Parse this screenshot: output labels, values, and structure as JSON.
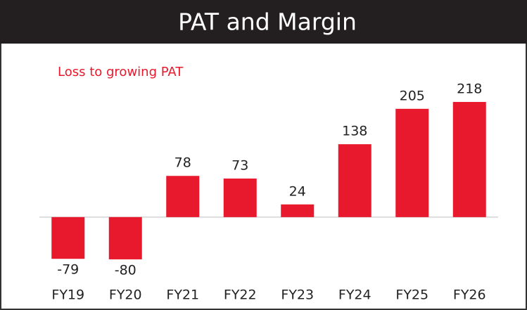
{
  "chart_data": {
    "type": "bar",
    "title": "PAT and Margin",
    "subtitle": "Loss to growing PAT",
    "categories": [
      "FY19",
      "FY20",
      "FY21",
      "FY22",
      "FY23",
      "FY24",
      "FY25",
      "FY26"
    ],
    "values": [
      -79,
      -80,
      78,
      73,
      24,
      138,
      205,
      218
    ],
    "color": "#e8192c",
    "ylim": [
      -120,
      250
    ]
  }
}
